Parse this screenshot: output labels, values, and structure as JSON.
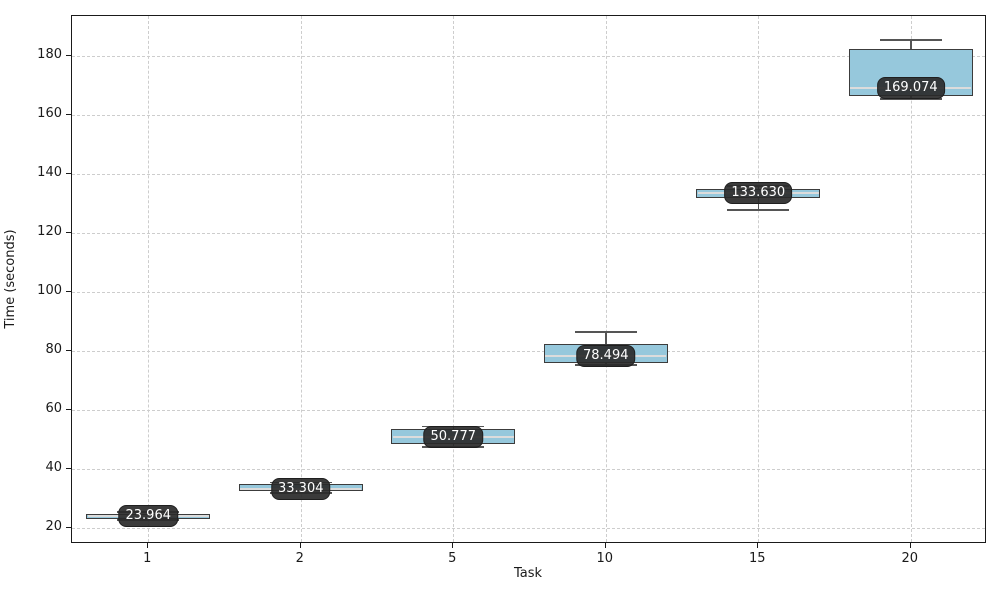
{
  "figure": {
    "title": "",
    "xlabel": "Task",
    "ylabel": "Time (seconds)"
  },
  "chart_data": {
    "type": "boxplot",
    "title": "",
    "xlabel": "Task",
    "ylabel": "Time (seconds)",
    "categories": [
      "1",
      "2",
      "5",
      "10",
      "15",
      "20"
    ],
    "yticks": [
      20,
      40,
      60,
      80,
      100,
      120,
      140,
      160,
      180
    ],
    "ylim": [
      14.6,
      193.6
    ],
    "xlim_category_units": [
      0.5,
      6.5
    ],
    "grid": "dashed, both axes",
    "legend": "none",
    "series": [
      {
        "category": "1",
        "median": 23.964,
        "median_label": "23.964",
        "q1": 23.2,
        "q3": 24.9,
        "whisker_low": 22.7,
        "whisker_high": 25.4
      },
      {
        "category": "2",
        "median": 33.304,
        "median_label": "33.304",
        "q1": 32.5,
        "q3": 34.8,
        "whisker_low": 31.9,
        "whisker_high": 35.4
      },
      {
        "category": "5",
        "median": 50.777,
        "median_label": "50.777",
        "q1": 48.4,
        "q3": 53.5,
        "whisker_low": 47.4,
        "whisker_high": 54.5
      },
      {
        "category": "10",
        "median": 78.494,
        "median_label": "78.494",
        "q1": 76.0,
        "q3": 82.3,
        "whisker_low": 75.2,
        "whisker_high": 86.5
      },
      {
        "category": "15",
        "median": 133.63,
        "median_label": "133.630",
        "q1": 132.0,
        "q3": 134.8,
        "whisker_low": 127.9,
        "whisker_high": 136.0
      },
      {
        "category": "20",
        "median": 169.074,
        "median_label": "169.074",
        "q1": 166.4,
        "q3": 182.3,
        "whisker_low": 165.5,
        "whisker_high": 185.4
      }
    ],
    "colors": {
      "box_fill": "#96c8dc",
      "box_edge": "#3c3c3c",
      "median_line": "#dcdcdc",
      "whisker": "#555555",
      "label_background": "#2a2a2a",
      "label_text": "#ffffff",
      "grid": "#cdcdcd",
      "spine": "#1a1a1a",
      "background": "#ffffff"
    }
  }
}
